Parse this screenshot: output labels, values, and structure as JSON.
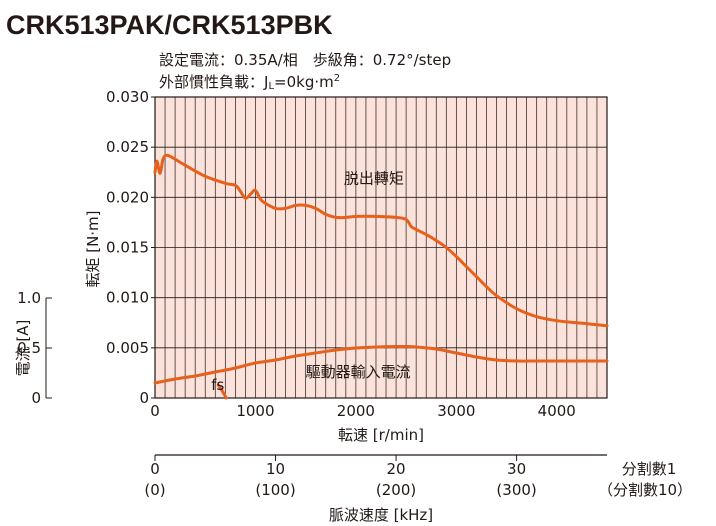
{
  "title": "CRK513PAK/CRK513PBK",
  "conditions": {
    "line1": "設定電流：0.35A/相　歩級角：0.72°/step",
    "line2_prefix": "外部慣性負載：J",
    "line2_sub": "L",
    "line2_mid": "=0kg·m",
    "line2_sup": "2"
  },
  "colors": {
    "grid_fill": "#fbe3dc",
    "grid_line": "#231815",
    "curve": "#e8611c",
    "axis": "#231815"
  },
  "axes": {
    "xlabel": "転速 [r/min]",
    "ylabel_torque": "転矩 [N·m]",
    "ylabel_current": "電流 [A]",
    "pulse_label": "脈波速度 [kHz]",
    "div1_label": "分割數1",
    "div10_label": "（分割數10）"
  },
  "chart_data": {
    "type": "line",
    "x_axis": {
      "label": "転速 [r/min]",
      "range": [
        0,
        4500
      ],
      "ticks": [
        "0",
        "1000",
        "2000",
        "3000",
        "4000"
      ],
      "tick_values": [
        0,
        1000,
        2000,
        3000,
        4000
      ]
    },
    "y_axis_torque": {
      "label": "転矩 [N·m]",
      "range": [
        0,
        0.03
      ],
      "ticks": [
        "0",
        "0.005",
        "0.010",
        "0.015",
        "0.020",
        "0.025",
        "0.030"
      ],
      "tick_values": [
        0,
        0.005,
        0.01,
        0.015,
        0.02,
        0.025,
        0.03
      ]
    },
    "y_axis_current": {
      "label": "電流 [A]",
      "range": [
        0,
        1.0
      ],
      "ticks": [
        "0",
        "0.5",
        "1.0"
      ],
      "tick_values": [
        0,
        0.5,
        1.0
      ]
    },
    "pulse_axis": {
      "label": "脈波速度 [kHz]",
      "range_div1": [
        0,
        37.5
      ],
      "ticks_div1": [
        "0",
        "10",
        "20",
        "30"
      ],
      "ticks_div10": [
        "(0)",
        "(100)",
        "(200)",
        "(300)"
      ],
      "tick_values_div1": [
        0,
        10,
        20,
        30
      ],
      "div1_label": "分割數1",
      "div10_label": "（分割數10）"
    },
    "grid": true,
    "series": [
      {
        "name": "脱出轉矩",
        "axis": "torque",
        "x": [
          0,
          20,
          50,
          80,
          120,
          200,
          300,
          500,
          700,
          800,
          850,
          900,
          950,
          1000,
          1050,
          1100,
          1200,
          1300,
          1400,
          1500,
          1600,
          1700,
          1800,
          1900,
          2000,
          2200,
          2400,
          2500,
          2550,
          2600,
          2700,
          2800,
          2900,
          3000,
          3100,
          3200,
          3300,
          3400,
          3600,
          3800,
          4000,
          4200,
          4400,
          4500
        ],
        "y": [
          0.0225,
          0.0236,
          0.0224,
          0.0238,
          0.0242,
          0.0238,
          0.0232,
          0.0221,
          0.0214,
          0.0212,
          0.0206,
          0.0199,
          0.0203,
          0.0207,
          0.0198,
          0.0194,
          0.0189,
          0.0189,
          0.0192,
          0.0192,
          0.0189,
          0.0183,
          0.018,
          0.018,
          0.0181,
          0.0181,
          0.018,
          0.0178,
          0.0171,
          0.0168,
          0.0163,
          0.0157,
          0.015,
          0.0141,
          0.0131,
          0.0121,
          0.0111,
          0.0102,
          0.0089,
          0.0081,
          0.0077,
          0.0075,
          0.0073,
          0.0072
        ]
      },
      {
        "name": "驅動器輸入電流",
        "axis": "current",
        "x": [
          0,
          200,
          400,
          600,
          800,
          1000,
          1200,
          1400,
          1600,
          1800,
          2000,
          2200,
          2400,
          2500,
          2600,
          2800,
          3000,
          3200,
          3400,
          3600,
          3800,
          4000,
          4200,
          4400,
          4500
        ],
        "y": [
          0.15,
          0.19,
          0.22,
          0.26,
          0.3,
          0.35,
          0.38,
          0.42,
          0.45,
          0.48,
          0.5,
          0.51,
          0.515,
          0.515,
          0.51,
          0.49,
          0.45,
          0.41,
          0.38,
          0.37,
          0.37,
          0.37,
          0.37,
          0.37,
          0.37
        ]
      },
      {
        "name": "fs",
        "axis": "torque",
        "x": [
          630,
          670,
          710
        ],
        "y": [
          0.0013,
          0.0007,
          0.0
        ]
      }
    ],
    "annotations": [
      {
        "text": "脱出轉矩",
        "x": 1880,
        "y": 0.0214
      },
      {
        "text": "驅動器輸入電流",
        "x": 1500,
        "y": 0.0021
      },
      {
        "text": "fs",
        "x": 560,
        "y": 0.0008
      }
    ]
  }
}
